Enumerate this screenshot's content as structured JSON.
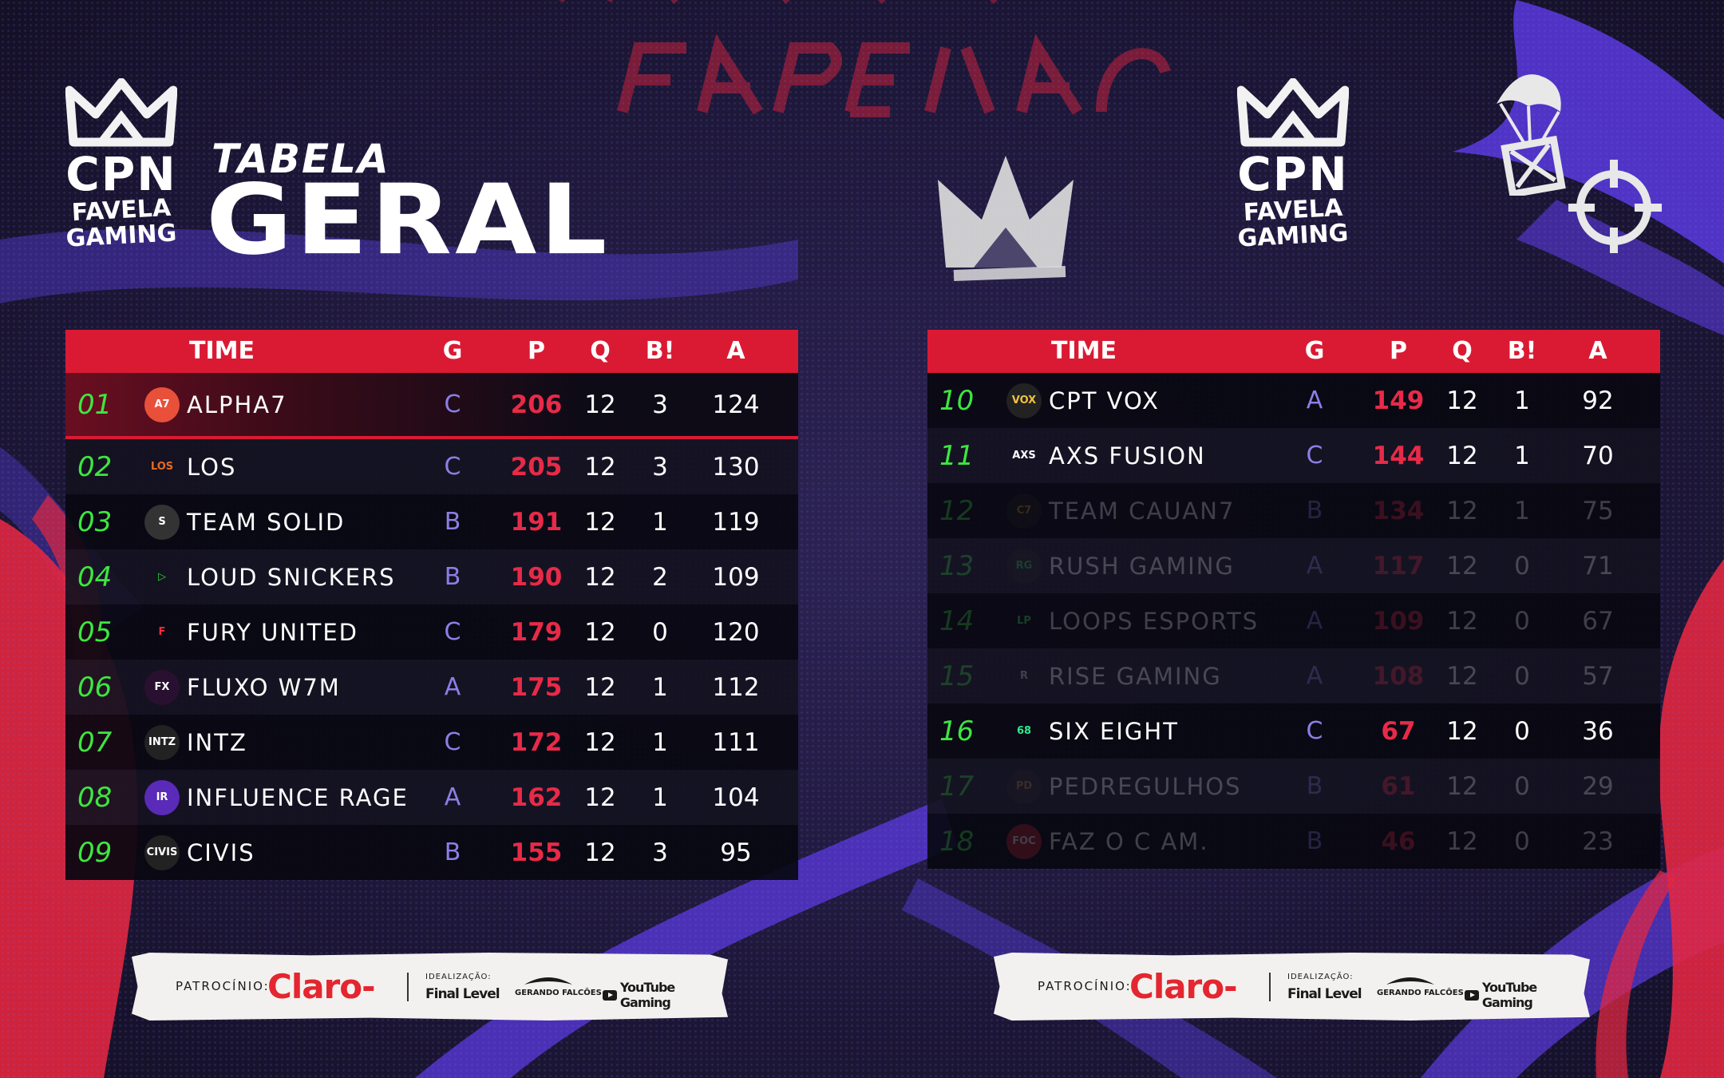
{
  "colors": {
    "accent_red": "#da1a33",
    "position_green": "#3de640",
    "group_purple": "#8b7fe6",
    "background": "#1e1838"
  },
  "header": {
    "logo_text": "CPN",
    "logo_subtitle_line1": "FAVELA",
    "logo_subtitle_line2": "GAMING",
    "title_small": "TABELA",
    "title_big": "GERAL"
  },
  "columns": {
    "time": "TIME",
    "g": "G",
    "p": "P",
    "q": "Q",
    "b": "B!",
    "a": "A"
  },
  "left_table": [
    {
      "pos": "01",
      "logo": "alpha7-logo",
      "name": "ALPHA7",
      "g": "C",
      "p": "206",
      "q": "12",
      "b": "3",
      "a": "124",
      "dim": false
    },
    {
      "pos": "02",
      "logo": "los-logo",
      "name": "LOS",
      "g": "C",
      "p": "205",
      "q": "12",
      "b": "3",
      "a": "130",
      "dim": false
    },
    {
      "pos": "03",
      "logo": "team-solid-logo",
      "name": "TEAM SOLID",
      "g": "B",
      "p": "191",
      "q": "12",
      "b": "1",
      "a": "119",
      "dim": false
    },
    {
      "pos": "04",
      "logo": "loud-logo",
      "name": "LOUD SNICKERS",
      "g": "B",
      "p": "190",
      "q": "12",
      "b": "2",
      "a": "109",
      "dim": false
    },
    {
      "pos": "05",
      "logo": "fury-logo",
      "name": "FURY UNITED",
      "g": "C",
      "p": "179",
      "q": "12",
      "b": "0",
      "a": "120",
      "dim": false
    },
    {
      "pos": "06",
      "logo": "fluxo-logo",
      "name": "FLUXO W7M",
      "g": "A",
      "p": "175",
      "q": "12",
      "b": "1",
      "a": "112",
      "dim": false
    },
    {
      "pos": "07",
      "logo": "intz-logo",
      "name": "INTZ",
      "g": "C",
      "p": "172",
      "q": "12",
      "b": "1",
      "a": "111",
      "dim": false
    },
    {
      "pos": "08",
      "logo": "influence-logo",
      "name": "INFLUENCE RAGE",
      "g": "A",
      "p": "162",
      "q": "12",
      "b": "1",
      "a": "104",
      "dim": false
    },
    {
      "pos": "09",
      "logo": "civis-logo",
      "name": "CIVIS",
      "g": "B",
      "p": "155",
      "q": "12",
      "b": "3",
      "a": "95",
      "dim": false
    }
  ],
  "right_table": [
    {
      "pos": "10",
      "logo": "cpt-vox-logo",
      "name": "CPT VOX",
      "g": "A",
      "p": "149",
      "q": "12",
      "b": "1",
      "a": "92",
      "dim": false
    },
    {
      "pos": "11",
      "logo": "axs-logo",
      "name": "AXS FUSION",
      "g": "C",
      "p": "144",
      "q": "12",
      "b": "1",
      "a": "70",
      "dim": false
    },
    {
      "pos": "12",
      "logo": "cauan7-logo",
      "name": "TEAM CAUAN7",
      "g": "B",
      "p": "134",
      "q": "12",
      "b": "1",
      "a": "75",
      "dim": true
    },
    {
      "pos": "13",
      "logo": "rush-logo",
      "name": "RUSH GAMING",
      "g": "A",
      "p": "117",
      "q": "12",
      "b": "0",
      "a": "71",
      "dim": true
    },
    {
      "pos": "14",
      "logo": "loops-logo",
      "name": "LOOPS ESPORTS",
      "g": "A",
      "p": "109",
      "q": "12",
      "b": "0",
      "a": "67",
      "dim": true
    },
    {
      "pos": "15",
      "logo": "rise-logo",
      "name": "RISE GAMING",
      "g": "A",
      "p": "108",
      "q": "12",
      "b": "0",
      "a": "57",
      "dim": true
    },
    {
      "pos": "16",
      "logo": "six-eight-logo",
      "name": "SIX EIGHT",
      "g": "C",
      "p": "67",
      "q": "12",
      "b": "0",
      "a": "36",
      "dim": false
    },
    {
      "pos": "17",
      "logo": "pedregulhos-logo",
      "name": "PEDREGULHOS",
      "g": "B",
      "p": "61",
      "q": "12",
      "b": "0",
      "a": "29",
      "dim": true
    },
    {
      "pos": "18",
      "logo": "faz-o-c-logo",
      "name": "FAZ O C AM.",
      "g": "B",
      "p": "46",
      "q": "12",
      "b": "0",
      "a": "23",
      "dim": true
    }
  ],
  "sponsor": {
    "label": "PATROCÍNIO:",
    "claro": "Claro-",
    "idealizacao": "IDEALIZAÇÃO:",
    "final_level": "Final Level",
    "gerando": "GERANDO FALCÕES",
    "youtube": "YouTube Gaming"
  }
}
